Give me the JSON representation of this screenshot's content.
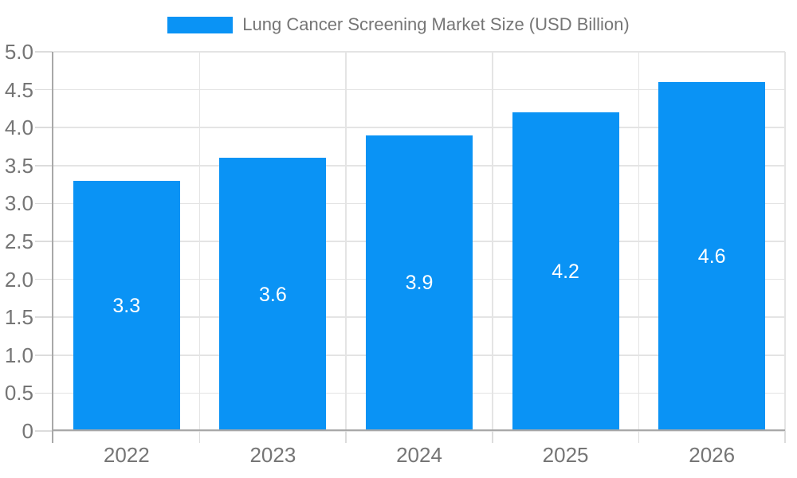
{
  "chart_data": {
    "type": "bar",
    "title": "Lung Cancer Screening Market Size (USD Billion)",
    "categories": [
      "2022",
      "2023",
      "2024",
      "2025",
      "2026"
    ],
    "series": [
      {
        "name": "Lung Cancer Screening Market Size (USD Billion)",
        "values": [
          3.3,
          3.6,
          3.9,
          4.2,
          4.6
        ]
      }
    ],
    "bar_labels": [
      "3.3",
      "3.6",
      "3.9",
      "4.2",
      "4.6"
    ],
    "xlabel": "",
    "ylabel": "",
    "ylim": [
      0,
      5
    ],
    "ytick_step": 0.5,
    "ytick_labels": [
      "0",
      "0.5",
      "1.0",
      "1.5",
      "2.0",
      "2.5",
      "3.0",
      "3.5",
      "4.0",
      "4.5",
      "5.0"
    ],
    "grid": true,
    "legend_position": "top-center",
    "colors": {
      "bar": "#0a93f5",
      "bar_label_text": "#ffffff",
      "gridline": "#e4e4e4",
      "tick": "#dcdcdc",
      "axis_line": "#a8a8a8",
      "axis_text": "#757575",
      "background": "#ffffff"
    }
  }
}
